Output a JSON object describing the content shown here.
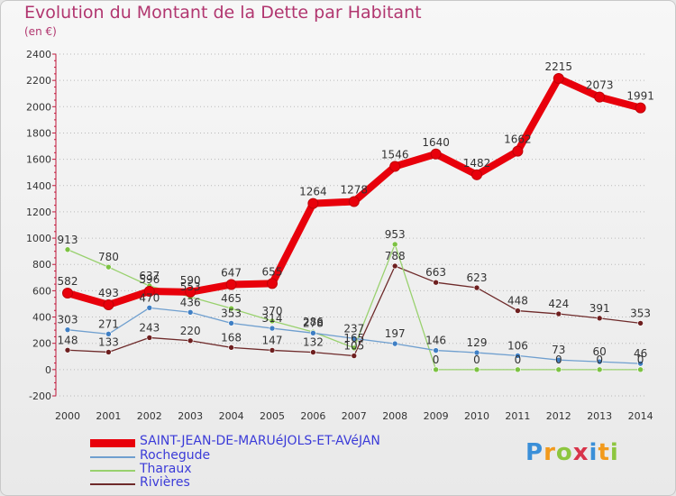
{
  "title": "Evolution du Montant de la Dette par Habitant",
  "subtitle": "(en €)",
  "logo_letters": [
    {
      "ch": "P",
      "color": "#3a8fd8"
    },
    {
      "ch": "r",
      "color": "#f29a1c"
    },
    {
      "ch": "o",
      "color": "#8dc63f"
    },
    {
      "ch": "x",
      "color": "#d8344a"
    },
    {
      "ch": "i",
      "color": "#3a8fd8"
    },
    {
      "ch": "t",
      "color": "#f29a1c"
    },
    {
      "ch": "i",
      "color": "#8dc63f"
    }
  ],
  "chart_data": {
    "type": "line",
    "x": [
      2000,
      2001,
      2002,
      2003,
      2004,
      2005,
      2006,
      2007,
      2008,
      2009,
      2010,
      2011,
      2012,
      2013,
      2014
    ],
    "ylim": [
      -200,
      2400
    ],
    "yticks": [
      -200,
      0,
      200,
      400,
      600,
      800,
      1000,
      1200,
      1400,
      1600,
      1800,
      2000,
      2200,
      2400
    ],
    "grid": "horizontal dotted",
    "legend_placement": "bottom-left",
    "series": [
      {
        "name": "SAINT-JEAN-DE-MARUéJOLS-ET-AVéJAN",
        "color": "#e8000b",
        "point_color": "#e8000b",
        "values": [
          582,
          493,
          596,
          590,
          647,
          655,
          1264,
          1278,
          1546,
          1640,
          1482,
          1662,
          2215,
          2073,
          1991
        ],
        "labels": [
          "582",
          "493",
          "596",
          "590",
          "647",
          "655",
          "1264",
          "1278",
          "1546",
          "1640",
          "1482",
          "1662",
          "2215",
          "2073",
          "1991"
        ]
      },
      {
        "name": "Rochegude",
        "color": "#6f9fcf",
        "point_color": "#3f7fc4",
        "values": [
          303,
          271,
          470,
          436,
          353,
          314,
          278,
          237,
          197,
          146,
          129,
          106,
          73,
          60,
          46
        ],
        "labels": [
          "303",
          "271",
          "470",
          "436",
          "353",
          "314",
          "278",
          "237",
          "197",
          "146",
          "129",
          "106",
          "73",
          "60",
          "46"
        ]
      },
      {
        "name": "Tharaux",
        "color": "#99d16e",
        "point_color": "#7cc242",
        "values": [
          913,
          780,
          637,
          553,
          465,
          370,
          286,
          165,
          953,
          0,
          0,
          0,
          0,
          0,
          0
        ],
        "labels": [
          "913",
          "780",
          "637",
          "553",
          "465",
          "370",
          "286",
          "165",
          "953",
          "0",
          "0",
          "0",
          "0",
          "0",
          "0"
        ]
      },
      {
        "name": "Rivières",
        "color": "#6e2a2a",
        "point_color": "#6e1f1f",
        "values": [
          148,
          133,
          243,
          220,
          168,
          147,
          132,
          105,
          788,
          663,
          623,
          448,
          424,
          391,
          353
        ],
        "labels": [
          "148",
          "133",
          "243",
          "220",
          "168",
          "147",
          "132",
          "105",
          "788",
          "663",
          "623",
          "448",
          "424",
          "391",
          "353"
        ]
      }
    ]
  }
}
